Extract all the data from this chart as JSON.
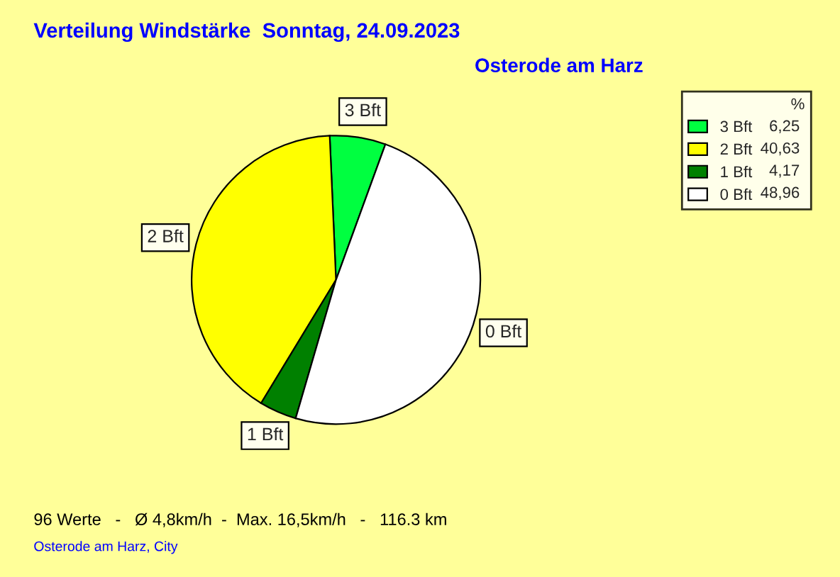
{
  "chart_data": {
    "type": "pie",
    "title": "Verteilung Windstärke  Sonntag, 24.09.2023",
    "subtitle": "Osterode am Harz",
    "categories": [
      "3 Bft",
      "2 Bft",
      "1 Bft",
      "0 Bft"
    ],
    "values": [
      6.25,
      40.63,
      4.17,
      48.96
    ],
    "value_labels": [
      "6,25",
      "40,63",
      "4,17",
      "48,96"
    ],
    "colors": [
      "#00ff40",
      "#ffff00",
      "#008000",
      "#ffffff"
    ],
    "legend": "top right",
    "legend_title": "%",
    "annotations": [
      "96 Werte   -   Ø 4,8km/h  -  Max. 16,5km/h   -   116.3 km",
      "Osterode am Harz, City"
    ]
  }
}
